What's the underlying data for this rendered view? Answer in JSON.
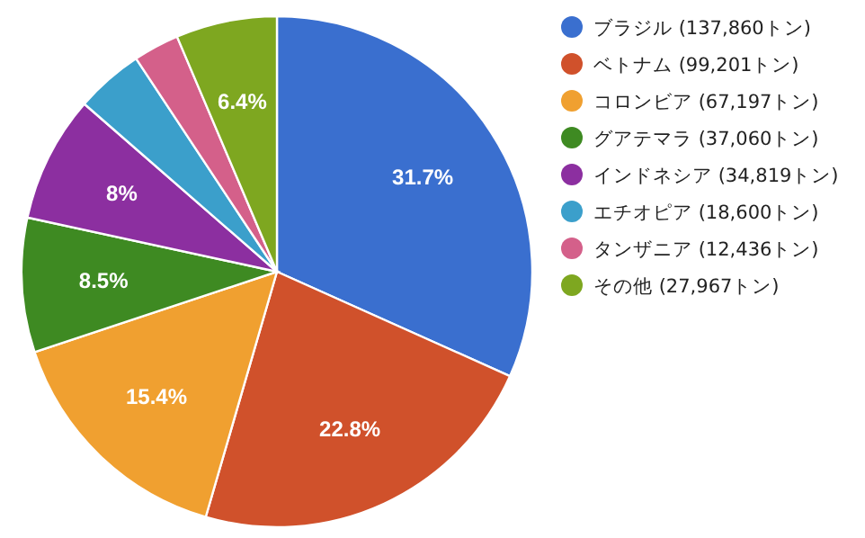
{
  "chart_data": {
    "type": "pie",
    "categories": [
      "ブラジル (137,860トン)",
      "ベトナム (99,201トン)",
      "コロンビア (67,197トン)",
      "グアテマラ (37,060トン)",
      "インドネシア (34,819トン)",
      "エチオピア (18,600トン)",
      "タンザニア (12,436トン)",
      "その他 (27,967トン)"
    ],
    "values": [
      31.7,
      22.8,
      15.4,
      8.5,
      8,
      4.3,
      2.9,
      6.4
    ],
    "colors": [
      "#3a6fcf",
      "#d0512b",
      "#f0a030",
      "#3e8a22",
      "#8c2fa0",
      "#3b9fcb",
      "#d4608a",
      "#7ea720"
    ],
    "value_labels": [
      "31.7%",
      "22.8%",
      "15.4%",
      "8.5%",
      "8%",
      null,
      null,
      "6.4%"
    ],
    "legend": "right"
  }
}
